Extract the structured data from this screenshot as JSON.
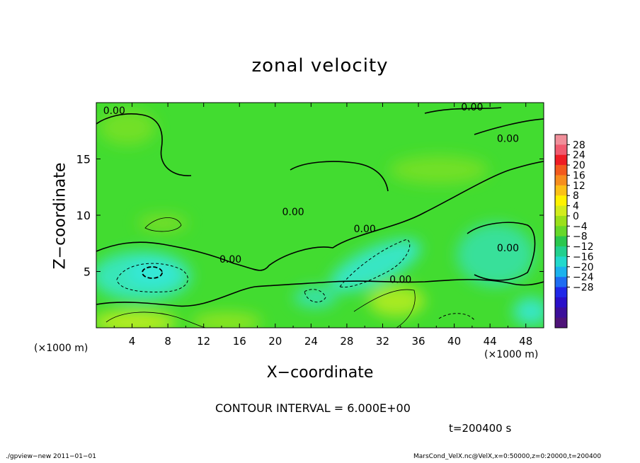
{
  "chart_data": {
    "type": "heatmap",
    "title": "zonal velocity",
    "xlabel": "X−coordinate",
    "ylabel": "Z−coordinate",
    "x_unit": "(×1000 m)",
    "xlim": [
      0,
      50
    ],
    "ylim": [
      0,
      20
    ],
    "x_ticks": [
      4,
      8,
      12,
      16,
      20,
      24,
      28,
      32,
      36,
      40,
      44,
      48
    ],
    "y_ticks": [
      5,
      10,
      15
    ],
    "colorbar_levels": [
      28,
      24,
      20,
      16,
      12,
      8,
      4,
      0,
      -4,
      -8,
      -12,
      -16,
      -20,
      -24,
      -28
    ],
    "colorbar_labels": [
      "28",
      "24",
      "20",
      "16",
      "12",
      "8",
      "4",
      "0",
      "−4",
      "−8",
      "−12",
      "−16",
      "−20",
      "−24",
      "−28"
    ],
    "colorbar_colors": [
      "#f08f9a",
      "#f05b6f",
      "#ee1c24",
      "#f25a1e",
      "#f68e1e",
      "#fbc117",
      "#fff200",
      "#d2ec1c",
      "#9ae01a",
      "#66d82a",
      "#2ac74e",
      "#22d08e",
      "#22d9cc",
      "#1bb2ed",
      "#1e6df2",
      "#2028e8",
      "#2a10c8",
      "#3c0f9a",
      "#4e1478"
    ],
    "contour_interval_text": "CONTOUR INTERVAL = 6.000E+00",
    "contour_labels": [
      {
        "text": "0.00",
        "x": 2,
        "z": 19.0
      },
      {
        "text": "0.00",
        "x": 42,
        "z": 19.3
      },
      {
        "text": "0.00",
        "x": 46,
        "z": 16.5
      },
      {
        "text": "0.00",
        "x": 22,
        "z": 10.0
      },
      {
        "text": "0.00",
        "x": 30,
        "z": 8.5
      },
      {
        "text": "0.00",
        "x": 15,
        "z": 5.8
      },
      {
        "text": "0.00",
        "x": 34,
        "z": 4.0
      },
      {
        "text": "0.00",
        "x": 46,
        "z": 6.8
      }
    ],
    "time_label": "t=200400 s",
    "grid": false,
    "legend": "right"
  },
  "footer": {
    "left": "./gpview−new   2011−01−01",
    "right": "MarsCond_VelX.nc@VelX,x=0:50000,z=0:20000,t=200400"
  }
}
